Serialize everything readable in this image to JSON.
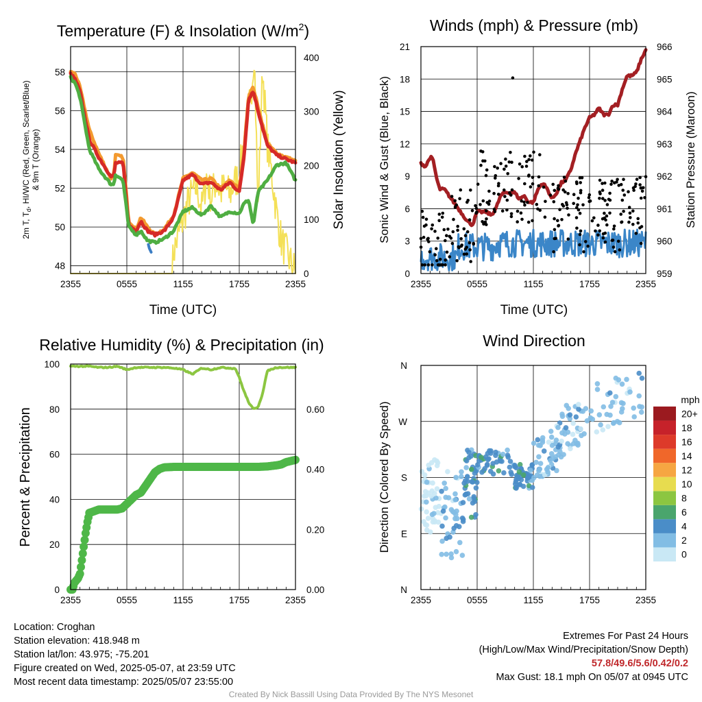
{
  "time_ticks": [
    "2355",
    "0555",
    "1155",
    "1755",
    "2355"
  ],
  "chart_data": [
    {
      "type": "line",
      "title": "Temperature (F) & Insolation (W/m2)",
      "title_main": "Temperature (F) & Insolation (W/m",
      "title_sup": "2",
      "title_end": ")",
      "xlabel": "Time (UTC)",
      "ylabel_line1": "2m T, T",
      "ylabel_sub": "d",
      "ylabel_line1b": ", HI/WC (Red, Green, Scarlet/Blue)",
      "ylabel_line2": "& 9m T (Orange)",
      "y2label": "Solar Insolation (Yellow)",
      "x_ticks": [
        "2355",
        "0555",
        "1155",
        "1755",
        "2355"
      ],
      "xlim": [
        0,
        24
      ],
      "ylim": [
        47.6,
        59.3
      ],
      "y_ticks": [
        48,
        50,
        52,
        54,
        56,
        58
      ],
      "y2lim": [
        0,
        420
      ],
      "y2_ticks": [
        0,
        100,
        200,
        300,
        400
      ],
      "series": [
        {
          "color": "#f39a2f",
          "x": [
            0,
            0.5,
            1,
            2,
            3,
            4.3,
            4.6,
            4.8,
            5.6,
            6.2,
            7,
            7.5,
            8.2,
            9,
            10,
            11,
            12,
            13,
            14,
            15,
            16,
            17,
            18,
            18.5,
            19,
            19.5,
            20,
            21,
            22,
            23,
            24
          ],
          "values": [
            58,
            57.9,
            57.2,
            55,
            53.8,
            52.5,
            52.7,
            53.7,
            53.6,
            50.3,
            49.9,
            50.5,
            50,
            49.6,
            49.9,
            50.6,
            52.5,
            52.8,
            52.4,
            52.5,
            52,
            52.4,
            52,
            53.8,
            56.8,
            57.2,
            56.2,
            54.3,
            53.8,
            53.6,
            53.4
          ]
        },
        {
          "color": "#d62a27",
          "x": [
            0,
            0.5,
            1,
            2,
            3,
            4.3,
            4.6,
            4.8,
            5.6,
            6.2,
            7,
            7.5,
            8.2,
            9,
            10,
            11,
            12,
            13,
            14,
            15,
            16,
            17,
            18,
            18.5,
            19,
            19.5,
            20,
            21,
            22,
            23,
            24
          ],
          "values": [
            57.9,
            57.6,
            57,
            54.5,
            53.6,
            52.6,
            52.6,
            53.3,
            53.3,
            50.1,
            49.8,
            50.3,
            49.8,
            49.6,
            49.8,
            50.5,
            52.4,
            52.7,
            52.2,
            52.3,
            51.9,
            52.3,
            51.8,
            53.6,
            56.6,
            57,
            56,
            54.2,
            53.7,
            53.5,
            53.3
          ]
        },
        {
          "color": "#4fae42",
          "x": [
            0,
            0.5,
            1,
            2,
            3,
            4.3,
            4.6,
            4.8,
            5.6,
            6.2,
            7,
            7.5,
            8.2,
            9,
            10,
            11,
            12,
            13,
            14,
            15,
            16,
            17,
            18,
            18.5,
            19,
            19.5,
            20,
            21,
            22,
            23,
            24
          ],
          "values": [
            57.7,
            57.4,
            56.7,
            54,
            53,
            52.2,
            52.2,
            52.7,
            52.4,
            50,
            49.6,
            49.8,
            49.3,
            49.2,
            49.4,
            49.8,
            50.8,
            51,
            50.6,
            51.1,
            50.5,
            50.8,
            50.7,
            51.2,
            51.4,
            50.1,
            51.8,
            52.4,
            53.2,
            53.3,
            52.4
          ]
        },
        {
          "color": "#3b7ec4",
          "x": [
            8.3,
            8.4,
            8.6
          ],
          "values": [
            49.1,
            48.9,
            48.7
          ]
        }
      ],
      "y2_series": [
        {
          "color": "#f4e057",
          "x": [
            0,
            10.8,
            11,
            11.5,
            12,
            12.5,
            13,
            13.5,
            14,
            14.5,
            15,
            15.5,
            16,
            16.5,
            17,
            17.5,
            18,
            18.5,
            19,
            19.3,
            19.6,
            20,
            20.5,
            21,
            21.5,
            22,
            22.5,
            23,
            23.5,
            24
          ],
          "values": [
            0,
            0,
            40,
            70,
            100,
            130,
            150,
            160,
            120,
            180,
            140,
            170,
            150,
            160,
            145,
            170,
            180,
            250,
            300,
            340,
            415,
            120,
            380,
            240,
            180,
            110,
            60,
            40,
            20,
            5
          ]
        }
      ]
    },
    {
      "type": "scatter",
      "title": "Winds (mph) & Pressure (mb)",
      "xlabel": "Time (UTC)",
      "ylabel": "Sonic Wind & Gust (Blue, Black)",
      "y2label": "Station Pressure (Maroon)",
      "x_ticks": [
        "2355",
        "0555",
        "1155",
        "1755",
        "2355"
      ],
      "xlim": [
        0,
        24
      ],
      "ylim": [
        0,
        21
      ],
      "y_ticks": [
        0,
        3,
        6,
        9,
        12,
        15,
        18,
        21
      ],
      "y2lim": [
        959,
        966
      ],
      "y2_ticks": [
        959,
        960,
        961,
        962,
        963,
        964,
        965,
        966
      ],
      "wind_color": "#3b86c8",
      "gust_color": "#000000",
      "pressure_color": "#a31f23",
      "max_gust_value": 18.1,
      "max_gust_time": 9.8,
      "pressure": {
        "x": [
          0,
          0.5,
          1,
          1.3,
          1.7,
          2,
          2.5,
          3,
          3.5,
          4,
          4.5,
          5,
          5.5,
          6,
          6.5,
          7,
          7.5,
          8,
          8.5,
          9,
          9.5,
          10,
          10.5,
          11,
          11.5,
          12,
          12.5,
          13,
          13.5,
          14,
          14.5,
          15,
          15.5,
          16,
          16.5,
          17,
          17.5,
          18,
          18.5,
          19,
          19.5,
          20,
          20.5,
          21,
          21.5,
          22,
          22.5,
          23,
          23.5,
          24
        ],
        "values": [
          962.4,
          962.3,
          962.6,
          962.5,
          961.9,
          961.6,
          961.6,
          961.4,
          961.2,
          961,
          960.8,
          960.6,
          960.5,
          960.9,
          960.9,
          960.9,
          960.8,
          961,
          961.4,
          961.5,
          961.5,
          961.5,
          961.3,
          961.4,
          961.2,
          961.2,
          961.6,
          961.8,
          961.6,
          961.3,
          961.5,
          961.8,
          961.9,
          962.2,
          962.7,
          963.1,
          963.5,
          963.8,
          963.9,
          964.1,
          963.9,
          963.9,
          964.2,
          964.2,
          964.7,
          965.1,
          965.1,
          965.2,
          965.6,
          965.9
        ]
      }
    },
    {
      "type": "line",
      "title": "Relative Humidity (%) & Precipitation (in)",
      "ylabel": "Percent & Precipitation",
      "x_ticks": [
        "2355",
        "0555",
        "1155",
        "1755",
        "2355"
      ],
      "xlim": [
        0,
        24
      ],
      "ylim": [
        0,
        100
      ],
      "y_ticks": [
        0,
        20,
        40,
        60,
        80,
        100
      ],
      "y2lim": [
        0,
        0.75
      ],
      "y2_ticks": [
        "0.00",
        "0.20",
        "0.40",
        "0.60"
      ],
      "series": [
        {
          "color": "#8cc641",
          "x": [
            0,
            1,
            2,
            3,
            4,
            5,
            6,
            7,
            8,
            9,
            10,
            11,
            12,
            13,
            14,
            15,
            16,
            17,
            17.6,
            18,
            18.5,
            19,
            19.5,
            20,
            20.5,
            21,
            22,
            23,
            24
          ],
          "values": [
            99,
            99,
            99,
            98.5,
            98.5,
            99,
            97.5,
            98.5,
            98.5,
            98.5,
            98.5,
            98.2,
            97.5,
            95.5,
            98.2,
            97.5,
            98.5,
            98.2,
            98,
            94,
            88,
            83,
            80,
            81,
            87,
            97,
            98.5,
            98.5,
            98.5
          ]
        },
        {
          "color": "#4eb748",
          "x": [
            0,
            0.2,
            0.4,
            0.6,
            0.8,
            1,
            1.2,
            1.4,
            1.6,
            1.8,
            2,
            3,
            4,
            5,
            5.5,
            6,
            6.5,
            7,
            7.5,
            8,
            8.5,
            9,
            9.5,
            10,
            11,
            12,
            13,
            14,
            15,
            16,
            17,
            18,
            19,
            20,
            21,
            22,
            22.5,
            23,
            23.5,
            24
          ],
          "values": [
            0,
            0,
            3,
            4,
            5,
            7,
            13,
            19,
            25,
            30,
            34,
            35.5,
            35.5,
            35.5,
            36,
            38,
            40,
            42,
            43,
            46,
            49,
            52,
            53.5,
            54.2,
            54.4,
            54.4,
            54.4,
            54.4,
            54.4,
            54.4,
            54.4,
            54.4,
            54.4,
            54.4,
            54.6,
            55.1,
            55.5,
            56.5,
            57,
            57.5
          ]
        }
      ]
    },
    {
      "type": "scatter",
      "title": "Wind Direction",
      "ylabel": "Direction (Colored By Speed)",
      "x_ticks": [
        "2355",
        "0555",
        "1155",
        "1755",
        "2355"
      ],
      "xlim": [
        0,
        24
      ],
      "y_ticks": [
        "N",
        "E",
        "S",
        "W",
        "N"
      ],
      "ylim_degrees": [
        0,
        360
      ],
      "colorbar_unit": "mph",
      "colorbar_labels": [
        "0",
        "2",
        "4",
        "6",
        "8",
        "10",
        "12",
        "14",
        "16",
        "18",
        "20+"
      ],
      "colorbar_colors": [
        "#c9e8f5",
        "#82bde4",
        "#4a8dc8",
        "#4aa56d",
        "#8cc641",
        "#e7dc4f",
        "#f6a642",
        "#f0672a",
        "#dd3a2a",
        "#c6222a",
        "#9b1a1f"
      ]
    }
  ],
  "meta_left": [
    "Location: Croghan",
    "Station elevation: 418.948 m",
    "Station lat/lon: 43.975; -75.201",
    "Figure created on Wed, 2025-05-07, at 23:59 UTC",
    "Most recent data timestamp: 2025/05/07 23:55:00"
  ],
  "extremes_title": "Extremes For Past 24 Hours",
  "extremes_subtitle": "(High/Low/Max Wind/Precipitation/Snow Depth)",
  "extremes_values": "57.8/49.6/5.6/0.42/0.2",
  "max_gust": "Max Gust: 18.1 mph On 05/07 at 0945 UTC",
  "credit": "Created By Nick Bassill Using Data Provided By The NYS Mesonet"
}
